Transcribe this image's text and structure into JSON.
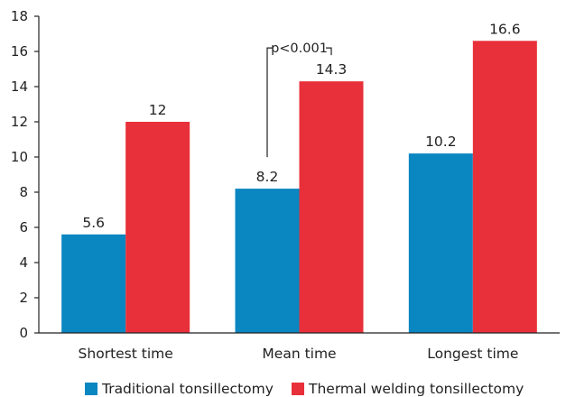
{
  "chart_data": {
    "type": "bar",
    "categories": [
      "Shortest time",
      "Mean time",
      "Longest time"
    ],
    "series": [
      {
        "name": "Traditional tonsillectomy",
        "values": [
          5.6,
          8.2,
          10.2
        ],
        "color": "#0a86c1"
      },
      {
        "name": "Thermal welding tonsillectomy",
        "values": [
          12,
          14.3,
          16.6
        ],
        "color": "#e8303a"
      }
    ],
    "data_labels": [
      [
        "5.6",
        "8.2",
        "10.2"
      ],
      [
        "12",
        "14.3",
        "16.6"
      ]
    ],
    "y_ticks": [
      "0",
      "2",
      "4",
      "6",
      "8",
      "10",
      "12",
      "14",
      "16",
      "18"
    ],
    "ylim": [
      0,
      18
    ],
    "title": "",
    "xlabel": "",
    "ylabel": "",
    "grid": false,
    "legend_position": "bottom",
    "annotation": {
      "text": "p<0.001",
      "category": "Mean time"
    }
  }
}
